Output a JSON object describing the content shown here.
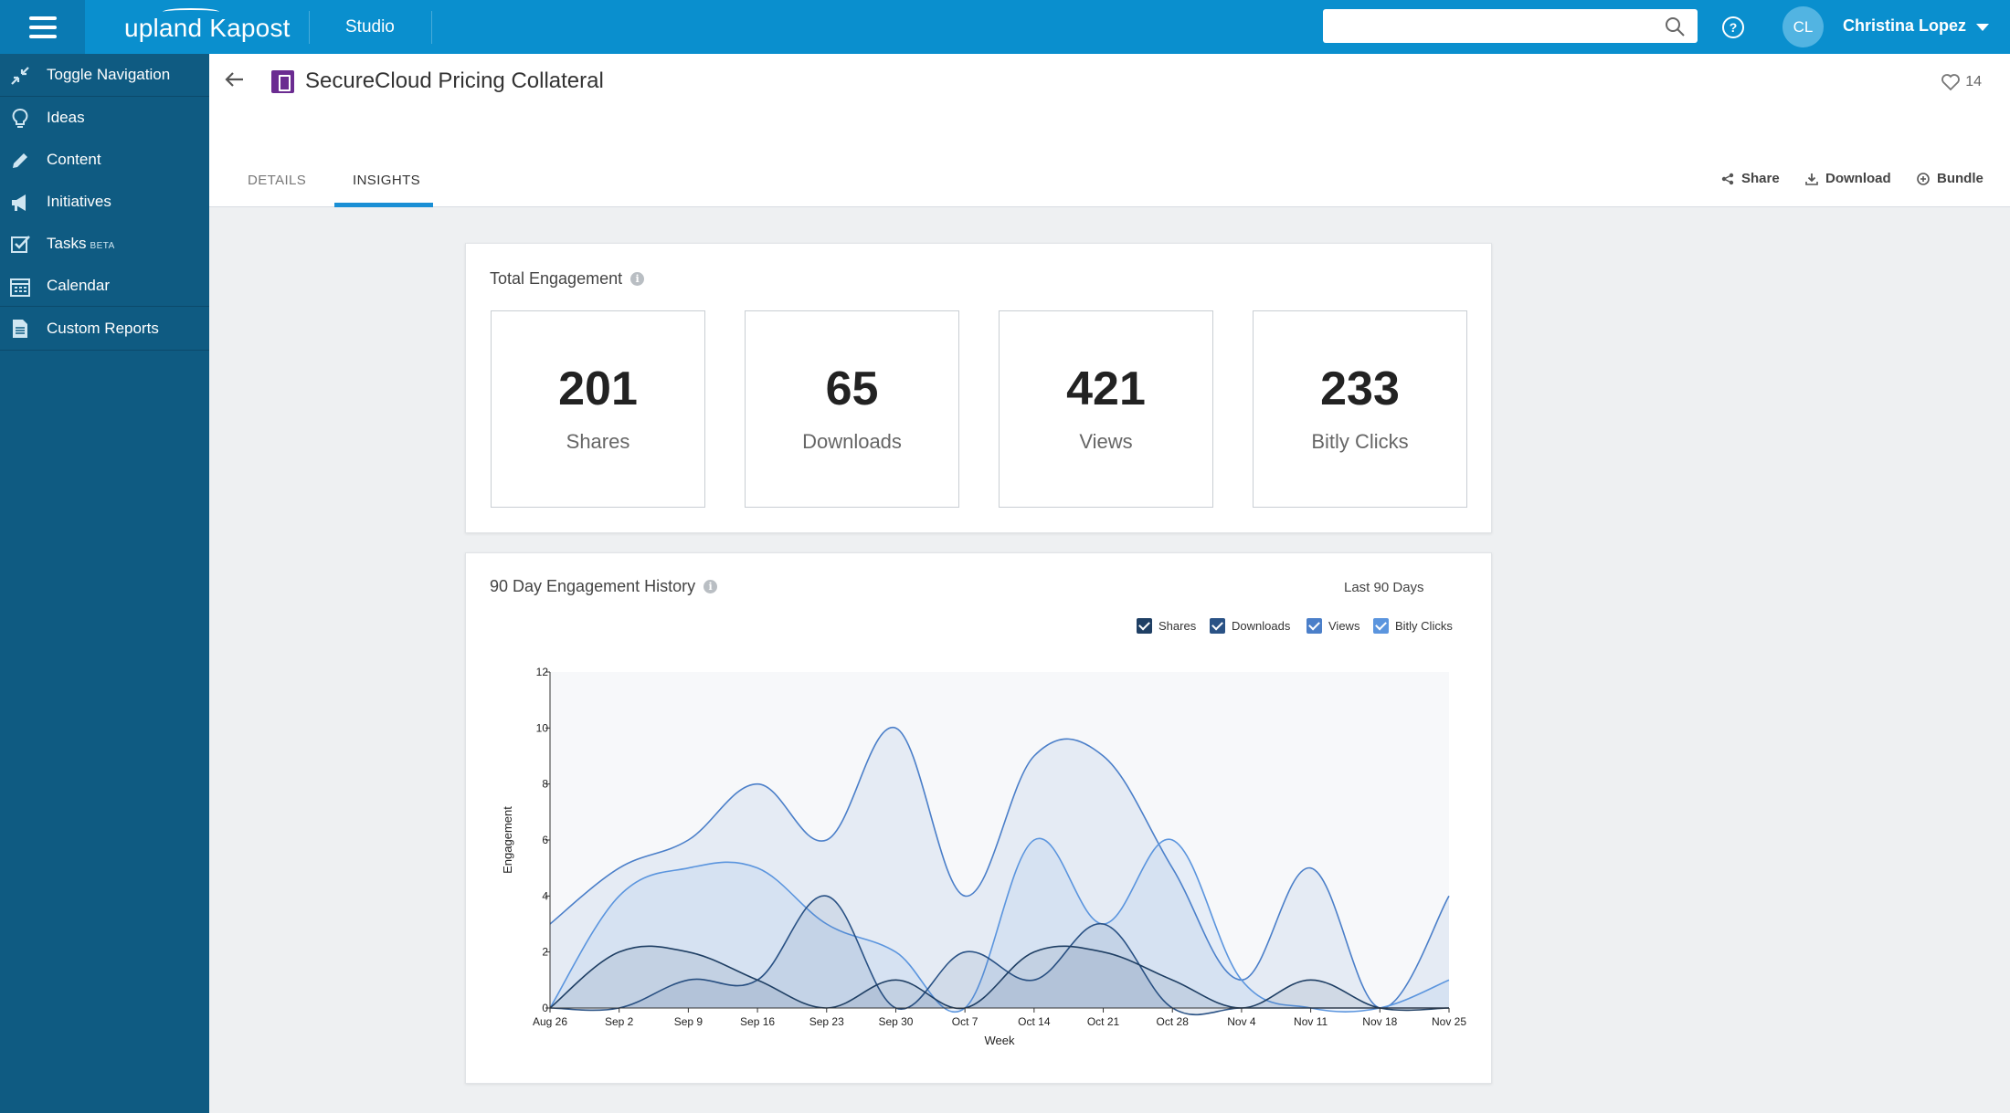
{
  "topbar": {
    "brand": "upland Kapost",
    "section": "Studio",
    "search_placeholder": "",
    "user_initials": "CL",
    "user_name": "Christina Lopez"
  },
  "sidebar": {
    "items": [
      {
        "label": "Toggle Navigation",
        "icon": "collapse-arrows-icon"
      },
      {
        "label": "Ideas",
        "icon": "lightbulb-icon"
      },
      {
        "label": "Content",
        "icon": "pencil-icon"
      },
      {
        "label": "Initiatives",
        "icon": "megaphone-icon"
      },
      {
        "label": "Tasks",
        "badge": "BETA",
        "icon": "checkbox-icon"
      },
      {
        "label": "Calendar",
        "icon": "calendar-icon"
      },
      {
        "label": "Custom Reports",
        "icon": "report-doc-icon"
      }
    ]
  },
  "header": {
    "title": "SecureCloud Pricing Collateral",
    "favorites_count": "14",
    "tabs": [
      "DETAILS",
      "INSIGHTS"
    ],
    "active_tab": "INSIGHTS",
    "actions": {
      "share": "Share",
      "download": "Download",
      "bundle": "Bundle"
    }
  },
  "total_engagement": {
    "title": "Total Engagement",
    "stats": [
      {
        "value": "201",
        "label": "Shares"
      },
      {
        "value": "65",
        "label": "Downloads"
      },
      {
        "value": "421",
        "label": "Views"
      },
      {
        "value": "233",
        "label": "Bitly Clicks"
      }
    ]
  },
  "history": {
    "title": "90 Day Engagement History",
    "range_label": "Last 90 Days",
    "legend": [
      {
        "name": "Shares",
        "color": "#1f3f64"
      },
      {
        "name": "Downloads",
        "color": "#2a5285"
      },
      {
        "name": "Views",
        "color": "#4b7fc9"
      },
      {
        "name": "Bitly Clicks",
        "color": "#5b95de"
      }
    ]
  },
  "chart_data": {
    "type": "area",
    "xlabel": "Week",
    "ylabel": "Engagement",
    "ylim": [
      0,
      12
    ],
    "yticks": [
      0,
      2,
      4,
      6,
      8,
      10,
      12
    ],
    "categories": [
      "Aug 26",
      "Sep 2",
      "Sep 9",
      "Sep 16",
      "Sep 23",
      "Sep 30",
      "Oct 7",
      "Oct 14",
      "Oct 21",
      "Oct 28",
      "Nov 4",
      "Nov 11",
      "Nov 18",
      "Nov 25"
    ],
    "series": [
      {
        "name": "Views",
        "color": "#4b7fc9",
        "values": [
          3,
          5,
          6,
          8,
          6,
          10,
          4,
          9,
          9,
          5,
          1,
          5,
          0,
          4
        ]
      },
      {
        "name": "Bitly Clicks",
        "color": "#5b95de",
        "values": [
          0,
          4,
          5,
          5,
          3,
          2,
          0,
          6,
          3,
          6,
          1,
          0,
          0,
          1
        ]
      },
      {
        "name": "Shares",
        "color": "#2a5285",
        "values": [
          0,
          0,
          1,
          1,
          4,
          0,
          2,
          1,
          3,
          0,
          0,
          0,
          0,
          0
        ]
      },
      {
        "name": "Downloads",
        "color": "#1f3f64",
        "values": [
          0,
          2,
          2,
          1,
          0,
          1,
          0,
          2,
          2,
          1,
          0,
          1,
          0,
          0
        ]
      }
    ],
    "grid": false,
    "legend_position": "top-right"
  }
}
